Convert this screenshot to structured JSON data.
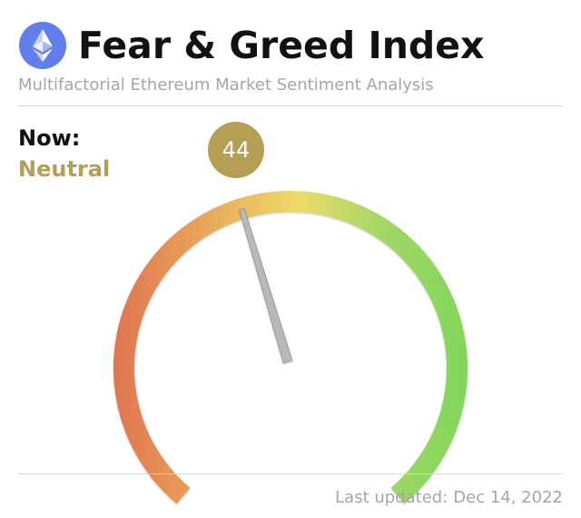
{
  "header": {
    "title": "Fear & Greed Index",
    "subtitle": "Multifactorial Ethereum Market Sentiment Analysis",
    "logo_icon": "ethereum-icon"
  },
  "status": {
    "now_label": "Now:",
    "sentiment": "Neutral",
    "value_text": "44"
  },
  "footer": {
    "updated_label": "Last updated:",
    "updated_date": "Dec 14, 2022"
  },
  "colors": {
    "accent": "#b59f55",
    "extreme_fear": "#e07450",
    "fear": "#e9aa5a",
    "neutral": "#eddc68",
    "greed": "#a6d765",
    "extreme_greed": "#7dd75a",
    "needle": "#b9b9b9",
    "logo": "#627eea"
  },
  "chart_data": {
    "type": "gauge",
    "value": 44,
    "min": 0,
    "max": 100,
    "classification": "Neutral",
    "date": "Dec 14, 2022"
  }
}
